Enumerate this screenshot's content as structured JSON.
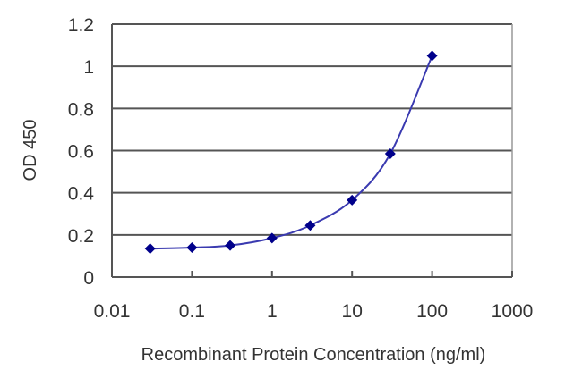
{
  "chart_data": {
    "type": "line",
    "title": "",
    "xlabel": "Recombinant Protein Concentration (ng/ml)",
    "ylabel": "OD 450",
    "xscale": "log",
    "xlim": [
      0.01,
      1000
    ],
    "ylim": [
      0,
      1.2
    ],
    "x_ticks": [
      "0.01",
      "0.1",
      "1",
      "10",
      "100",
      "1000"
    ],
    "y_ticks": [
      "0",
      "0.2",
      "0.4",
      "0.6",
      "0.8",
      "1",
      "1.2"
    ],
    "grid": {
      "horizontal": true,
      "vertical": false
    },
    "legend": null,
    "series": [
      {
        "name": "OD 450",
        "color": "#00008b",
        "marker": "diamond",
        "x": [
          0.03,
          0.1,
          0.3,
          1,
          3,
          10,
          30,
          100
        ],
        "values": [
          0.135,
          0.14,
          0.15,
          0.185,
          0.245,
          0.365,
          0.585,
          1.05
        ]
      }
    ]
  },
  "colors": {
    "line": "#3a3ab0",
    "marker": "#00008b",
    "grid": "#555555",
    "axis": "#555555",
    "text": "#333333"
  }
}
